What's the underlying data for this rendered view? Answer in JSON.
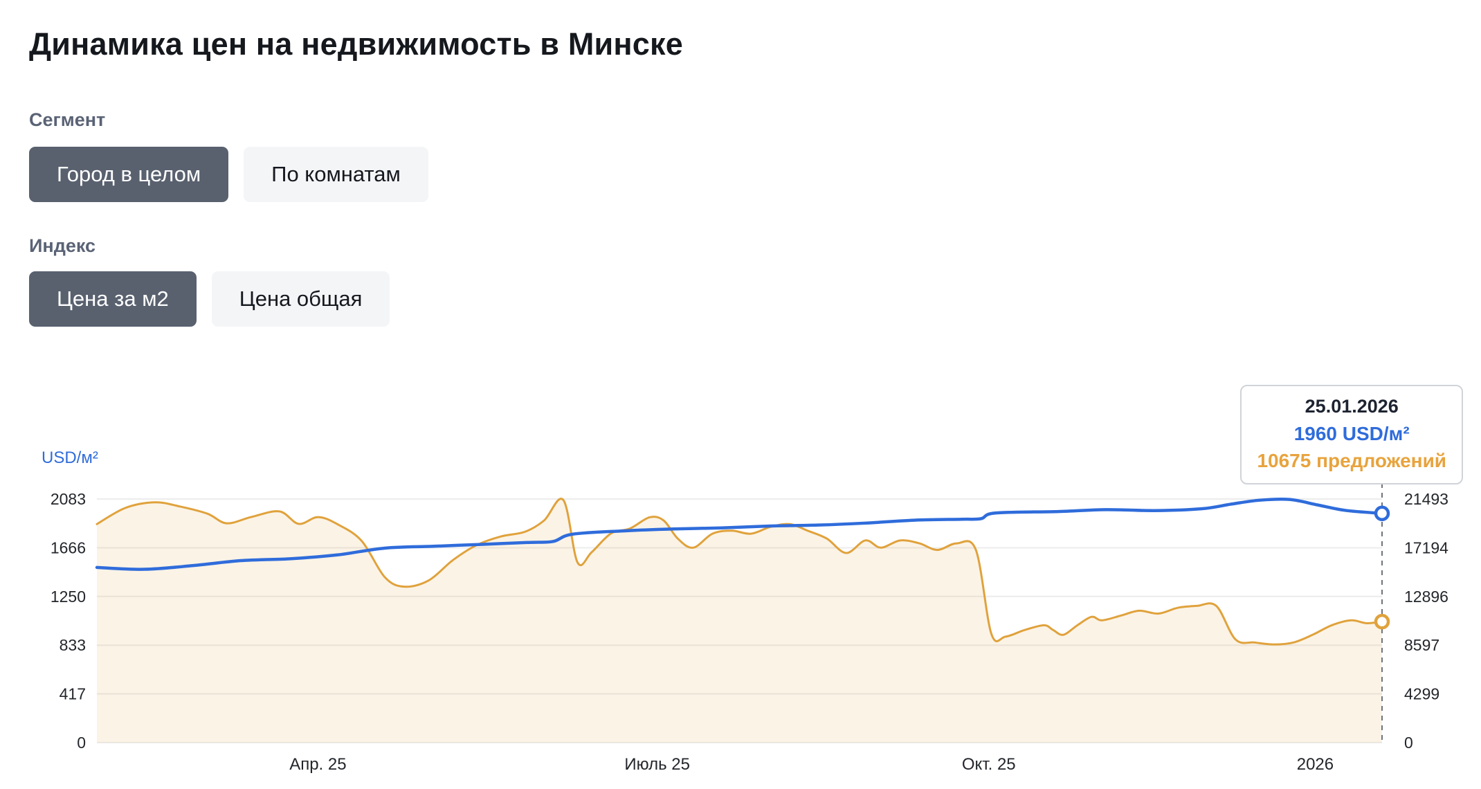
{
  "page": {
    "title": "Динамика цен на недвижимость в Минске"
  },
  "filters": {
    "segment": {
      "label": "Сегмент",
      "options": [
        {
          "label": "Город в целом",
          "selected": true
        },
        {
          "label": "По комнатам",
          "selected": false
        }
      ]
    },
    "index": {
      "label": "Индекс",
      "options": [
        {
          "label": "Цена за м2",
          "selected": true
        },
        {
          "label": "Цена общая",
          "selected": false
        }
      ]
    }
  },
  "tooltip": {
    "date": "25.01.2026",
    "price": "1960 USD/м²",
    "offers": "10675 предложений"
  },
  "chart_data": {
    "type": "line",
    "title": "Динамика цен на недвижимость в Минске",
    "grid": true,
    "legend": "none",
    "left_axis": {
      "label": "USD/м²",
      "ticks": [
        0,
        417,
        833,
        1250,
        1666,
        2083
      ],
      "max": 2083
    },
    "right_axis": {
      "ticks": [
        0,
        4299,
        8597,
        12896,
        17194,
        21493
      ],
      "max": 21493
    },
    "x_ticks": [
      {
        "label": "Апр. 25",
        "pos": 0.172
      },
      {
        "label": "Июль 25",
        "pos": 0.436
      },
      {
        "label": "Окт. 25",
        "pos": 0.694
      },
      {
        "label": "2026",
        "pos": 0.948
      }
    ],
    "area_fill": "rgba(224,162,60,0.13)",
    "cursor": {
      "pos": 1.0,
      "date": "25.01.2026",
      "price": 1960,
      "offers": 10675
    },
    "series": [
      {
        "name": "USD/м²",
        "axis": "left",
        "color": "#2f6cdb",
        "width": 4.5,
        "fill": false,
        "points": [
          [
            0.0,
            1498
          ],
          [
            0.037,
            1482
          ],
          [
            0.075,
            1514
          ],
          [
            0.112,
            1556
          ],
          [
            0.15,
            1572
          ],
          [
            0.187,
            1605
          ],
          [
            0.224,
            1663
          ],
          [
            0.262,
            1679
          ],
          [
            0.299,
            1695
          ],
          [
            0.337,
            1712
          ],
          [
            0.355,
            1720
          ],
          [
            0.37,
            1782
          ],
          [
            0.411,
            1811
          ],
          [
            0.449,
            1827
          ],
          [
            0.486,
            1836
          ],
          [
            0.524,
            1852
          ],
          [
            0.561,
            1860
          ],
          [
            0.598,
            1877
          ],
          [
            0.636,
            1902
          ],
          [
            0.673,
            1910
          ],
          [
            0.688,
            1915
          ],
          [
            0.699,
            1963
          ],
          [
            0.748,
            1976
          ],
          [
            0.785,
            1992
          ],
          [
            0.823,
            1984
          ],
          [
            0.86,
            2000
          ],
          [
            0.883,
            2040
          ],
          [
            0.905,
            2073
          ],
          [
            0.928,
            2079
          ],
          [
            0.95,
            2032
          ],
          [
            0.972,
            1985
          ],
          [
            1.0,
            1960
          ]
        ]
      },
      {
        "name": "предложений",
        "axis": "right",
        "color": "#e0a23c",
        "width": 3,
        "fill": true,
        "points": [
          [
            0.0,
            19280
          ],
          [
            0.022,
            20700
          ],
          [
            0.045,
            21200
          ],
          [
            0.064,
            20850
          ],
          [
            0.086,
            20200
          ],
          [
            0.101,
            19350
          ],
          [
            0.12,
            19900
          ],
          [
            0.142,
            20400
          ],
          [
            0.157,
            19300
          ],
          [
            0.172,
            19900
          ],
          [
            0.187,
            19280
          ],
          [
            0.206,
            17800
          ],
          [
            0.224,
            14600
          ],
          [
            0.239,
            13760
          ],
          [
            0.258,
            14300
          ],
          [
            0.277,
            16100
          ],
          [
            0.295,
            17400
          ],
          [
            0.314,
            18180
          ],
          [
            0.333,
            18600
          ],
          [
            0.348,
            19600
          ],
          [
            0.363,
            21400
          ],
          [
            0.374,
            15900
          ],
          [
            0.385,
            16800
          ],
          [
            0.4,
            18450
          ],
          [
            0.415,
            18900
          ],
          [
            0.43,
            19880
          ],
          [
            0.441,
            19600
          ],
          [
            0.452,
            18000
          ],
          [
            0.464,
            17200
          ],
          [
            0.479,
            18430
          ],
          [
            0.494,
            18700
          ],
          [
            0.509,
            18430
          ],
          [
            0.524,
            19030
          ],
          [
            0.539,
            19280
          ],
          [
            0.553,
            18700
          ],
          [
            0.568,
            18000
          ],
          [
            0.583,
            16730
          ],
          [
            0.598,
            17840
          ],
          [
            0.61,
            17200
          ],
          [
            0.625,
            17840
          ],
          [
            0.64,
            17580
          ],
          [
            0.654,
            17000
          ],
          [
            0.669,
            17580
          ],
          [
            0.684,
            16990
          ],
          [
            0.696,
            9600
          ],
          [
            0.707,
            9350
          ],
          [
            0.722,
            9940
          ],
          [
            0.737,
            10360
          ],
          [
            0.744,
            9940
          ],
          [
            0.752,
            9515
          ],
          [
            0.763,
            10360
          ],
          [
            0.774,
            11100
          ],
          [
            0.782,
            10790
          ],
          [
            0.797,
            11215
          ],
          [
            0.811,
            11640
          ],
          [
            0.826,
            11385
          ],
          [
            0.841,
            11895
          ],
          [
            0.856,
            12065
          ],
          [
            0.871,
            12065
          ],
          [
            0.886,
            9100
          ],
          [
            0.901,
            8835
          ],
          [
            0.916,
            8660
          ],
          [
            0.931,
            8835
          ],
          [
            0.946,
            9515
          ],
          [
            0.961,
            10360
          ],
          [
            0.976,
            10790
          ],
          [
            0.988,
            10535
          ],
          [
            1.0,
            10675
          ]
        ]
      }
    ]
  }
}
